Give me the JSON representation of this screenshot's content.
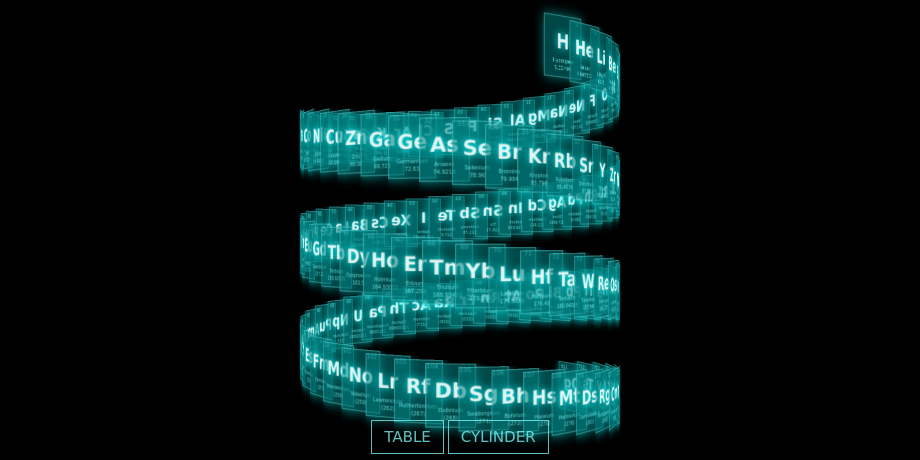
{
  "menu": {
    "table_label": "TABLE",
    "cylinder_label": "CYLINDER"
  },
  "view": {
    "layout": "cylinder"
  },
  "colors": {
    "tile_bg": "#007f7f",
    "glow": "#00ffff",
    "text": "#7fffff"
  },
  "elements": [
    {
      "n": 1,
      "s": "H",
      "name": "Hydrogen",
      "w": "1.00794"
    },
    {
      "n": 2,
      "s": "He",
      "name": "Helium",
      "w": "4.002602"
    },
    {
      "n": 3,
      "s": "Li",
      "name": "Lithium",
      "w": "6.941"
    },
    {
      "n": 4,
      "s": "Be",
      "name": "Beryllium",
      "w": "9.012182"
    },
    {
      "n": 5,
      "s": "B",
      "name": "Boron",
      "w": "10.811"
    },
    {
      "n": 6,
      "s": "C",
      "name": "Carbon",
      "w": "12.0107"
    },
    {
      "n": 7,
      "s": "N",
      "name": "Nitrogen",
      "w": "14.0067"
    },
    {
      "n": 8,
      "s": "O",
      "name": "Oxygen",
      "w": "15.9994"
    },
    {
      "n": 9,
      "s": "F",
      "name": "Fluorine",
      "w": "18.9984032"
    },
    {
      "n": 10,
      "s": "Ne",
      "name": "Neon",
      "w": "20.1797"
    },
    {
      "n": 11,
      "s": "Na",
      "name": "Sodium",
      "w": "22.98976..."
    },
    {
      "n": 12,
      "s": "Mg",
      "name": "Magnesium",
      "w": "24.305"
    },
    {
      "n": 13,
      "s": "Al",
      "name": "Aluminium",
      "w": "26.9815386"
    },
    {
      "n": 14,
      "s": "Si",
      "name": "Silicon",
      "w": "28.0855"
    },
    {
      "n": 15,
      "s": "P",
      "name": "Phosphorus",
      "w": "30.973762"
    },
    {
      "n": 16,
      "s": "S",
      "name": "Sulfur",
      "w": "32.065"
    },
    {
      "n": 17,
      "s": "Cl",
      "name": "Chlorine",
      "w": "35.453"
    },
    {
      "n": 18,
      "s": "Ar",
      "name": "Argon",
      "w": "39.948"
    },
    {
      "n": 19,
      "s": "K",
      "name": "Potassium",
      "w": "39.948"
    },
    {
      "n": 20,
      "s": "Ca",
      "name": "Calcium",
      "w": "40.078"
    },
    {
      "n": 21,
      "s": "Sc",
      "name": "Scandium",
      "w": "44.955912"
    },
    {
      "n": 22,
      "s": "Ti",
      "name": "Titanium",
      "w": "47.867"
    },
    {
      "n": 23,
      "s": "V",
      "name": "Vanadium",
      "w": "50.9415"
    },
    {
      "n": 24,
      "s": "Cr",
      "name": "Chromium",
      "w": "51.9961"
    },
    {
      "n": 25,
      "s": "Mn",
      "name": "Manganese",
      "w": "54.938045"
    },
    {
      "n": 26,
      "s": "Fe",
      "name": "Iron",
      "w": "55.845"
    },
    {
      "n": 27,
      "s": "Co",
      "name": "Cobalt",
      "w": "58.933195"
    },
    {
      "n": 28,
      "s": "Ni",
      "name": "Nickel",
      "w": "58.6934"
    },
    {
      "n": 29,
      "s": "Cu",
      "name": "Copper",
      "w": "63.546"
    },
    {
      "n": 30,
      "s": "Zn",
      "name": "Zinc",
      "w": "65.38"
    },
    {
      "n": 31,
      "s": "Ga",
      "name": "Gallium",
      "w": "69.723"
    },
    {
      "n": 32,
      "s": "Ge",
      "name": "Germanium",
      "w": "72.63"
    },
    {
      "n": 33,
      "s": "As",
      "name": "Arsenic",
      "w": "74.9216"
    },
    {
      "n": 34,
      "s": "Se",
      "name": "Selenium",
      "w": "78.96"
    },
    {
      "n": 35,
      "s": "Br",
      "name": "Bromine",
      "w": "79.904"
    },
    {
      "n": 36,
      "s": "Kr",
      "name": "Krypton",
      "w": "83.798"
    },
    {
      "n": 37,
      "s": "Rb",
      "name": "Rubidium",
      "w": "85.4678"
    },
    {
      "n": 38,
      "s": "Sr",
      "name": "Strontium",
      "w": "87.62"
    },
    {
      "n": 39,
      "s": "Y",
      "name": "Yttrium",
      "w": "88.90585"
    },
    {
      "n": 40,
      "s": "Zr",
      "name": "Zirconium",
      "w": "91.224"
    },
    {
      "n": 41,
      "s": "Nb",
      "name": "Niobium",
      "w": "92.90628"
    },
    {
      "n": 42,
      "s": "Mo",
      "name": "Molybdenum",
      "w": "95.96"
    },
    {
      "n": 43,
      "s": "Tc",
      "name": "Technetium",
      "w": "(98)"
    },
    {
      "n": 44,
      "s": "Ru",
      "name": "Ruthenium",
      "w": "101.07"
    },
    {
      "n": 45,
      "s": "Rh",
      "name": "Rhodium",
      "w": "102.9055"
    },
    {
      "n": 46,
      "s": "Pd",
      "name": "Palladium",
      "w": "106.42"
    },
    {
      "n": 47,
      "s": "Ag",
      "name": "Silver",
      "w": "107.8682"
    },
    {
      "n": 48,
      "s": "Cd",
      "name": "Cadmium",
      "w": "112.411"
    },
    {
      "n": 49,
      "s": "In",
      "name": "Indium",
      "w": "114.818"
    },
    {
      "n": 50,
      "s": "Sn",
      "name": "Tin",
      "w": "118.71"
    },
    {
      "n": 51,
      "s": "Sb",
      "name": "Antimony",
      "w": "121.76"
    },
    {
      "n": 52,
      "s": "Te",
      "name": "Tellurium",
      "w": "127.6"
    },
    {
      "n": 53,
      "s": "I",
      "name": "Iodine",
      "w": "126.90447"
    },
    {
      "n": 54,
      "s": "Xe",
      "name": "Xenon",
      "w": "131.293"
    },
    {
      "n": 55,
      "s": "Cs",
      "name": "Caesium",
      "w": "132.9054"
    },
    {
      "n": 56,
      "s": "Ba",
      "name": "Barium",
      "w": "132.9054519"
    },
    {
      "n": 57,
      "s": "La",
      "name": "Lanthanum",
      "w": "138.90547"
    },
    {
      "n": 58,
      "s": "Ce",
      "name": "Cerium",
      "w": "140.116"
    },
    {
      "n": 59,
      "s": "Pr",
      "name": "Praseodymium",
      "w": "140.90765"
    },
    {
      "n": 60,
      "s": "Nd",
      "name": "Neodymium",
      "w": "144.242"
    },
    {
      "n": 61,
      "s": "Pm",
      "name": "Promethium",
      "w": "(145)"
    },
    {
      "n": 62,
      "s": "Sm",
      "name": "Samarium",
      "w": "150.36"
    },
    {
      "n": 63,
      "s": "Eu",
      "name": "Europium",
      "w": "151.964"
    },
    {
      "n": 64,
      "s": "Gd",
      "name": "Gadolinium",
      "w": "157.25"
    },
    {
      "n": 65,
      "s": "Tb",
      "name": "Terbium",
      "w": "158.92535"
    },
    {
      "n": 66,
      "s": "Dy",
      "name": "Dysprosium",
      "w": "162.5"
    },
    {
      "n": 67,
      "s": "Ho",
      "name": "Holmium",
      "w": "164.93032"
    },
    {
      "n": 68,
      "s": "Er",
      "name": "Erbium",
      "w": "167.259"
    },
    {
      "n": 69,
      "s": "Tm",
      "name": "Thulium",
      "w": "168.93421"
    },
    {
      "n": 70,
      "s": "Yb",
      "name": "Ytterbium",
      "w": "173.054"
    },
    {
      "n": 71,
      "s": "Lu",
      "name": "Lutetium",
      "w": "174.9668"
    },
    {
      "n": 72,
      "s": "Hf",
      "name": "Hafnium",
      "w": "178.49"
    },
    {
      "n": 73,
      "s": "Ta",
      "name": "Tantalum",
      "w": "180.94788"
    },
    {
      "n": 74,
      "s": "W",
      "name": "Tungsten",
      "w": "183.84"
    },
    {
      "n": 75,
      "s": "Re",
      "name": "Rhenium",
      "w": "186.207"
    },
    {
      "n": 76,
      "s": "Os",
      "name": "Osmium",
      "w": "190.23"
    },
    {
      "n": 77,
      "s": "Ir",
      "name": "Iridium",
      "w": "192.217"
    },
    {
      "n": 78,
      "s": "Pt",
      "name": "Platinum",
      "w": "195.084"
    },
    {
      "n": 79,
      "s": "Au",
      "name": "Gold",
      "w": "196.966569"
    },
    {
      "n": 80,
      "s": "Hg",
      "name": "Mercury",
      "w": "200.59"
    },
    {
      "n": 81,
      "s": "Tl",
      "name": "Thallium",
      "w": "204.3833"
    },
    {
      "n": 82,
      "s": "Pb",
      "name": "Lead",
      "w": "207.2"
    },
    {
      "n": 83,
      "s": "Bi",
      "name": "Bismuth",
      "w": "208.9804"
    },
    {
      "n": 84,
      "s": "Po",
      "name": "Polonium",
      "w": "(209)"
    },
    {
      "n": 85,
      "s": "At",
      "name": "Astatine",
      "w": "(210)"
    },
    {
      "n": 86,
      "s": "Rn",
      "name": "Radon",
      "w": "(222)"
    },
    {
      "n": 87,
      "s": "Fr",
      "name": "Francium",
      "w": "(223)"
    },
    {
      "n": 88,
      "s": "Ra",
      "name": "Radium",
      "w": "(226)"
    },
    {
      "n": 89,
      "s": "Ac",
      "name": "Actinium",
      "w": "(227)"
    },
    {
      "n": 90,
      "s": "Th",
      "name": "Thorium",
      "w": "232.03806"
    },
    {
      "n": 91,
      "s": "Pa",
      "name": "Protactinium",
      "w": "231.0588"
    },
    {
      "n": 92,
      "s": "U",
      "name": "Uranium",
      "w": "238.02891"
    },
    {
      "n": 93,
      "s": "Np",
      "name": "Neptunium",
      "w": "(237)"
    },
    {
      "n": 94,
      "s": "Pu",
      "name": "Plutonium",
      "w": "(244)"
    },
    {
      "n": 95,
      "s": "Am",
      "name": "Americium",
      "w": "(243)"
    },
    {
      "n": 96,
      "s": "Cm",
      "name": "Curium",
      "w": "(247)"
    },
    {
      "n": 97,
      "s": "Bk",
      "name": "Berkelium",
      "w": "(247)"
    },
    {
      "n": 98,
      "s": "Cf",
      "name": "Californium",
      "w": "(251)"
    },
    {
      "n": 99,
      "s": "Es",
      "name": "Einstenium",
      "w": "(252)"
    },
    {
      "n": 100,
      "s": "Fm",
      "name": "Fermium",
      "w": "(257)"
    },
    {
      "n": 101,
      "s": "Md",
      "name": "Mendelevium",
      "w": "(258)"
    },
    {
      "n": 102,
      "s": "No",
      "name": "Nobelium",
      "w": "(259)"
    },
    {
      "n": 103,
      "s": "Lr",
      "name": "Lawrencium",
      "w": "(262)"
    },
    {
      "n": 104,
      "s": "Rf",
      "name": "Rutherfordium",
      "w": "(267)"
    },
    {
      "n": 105,
      "s": "Db",
      "name": "Dubnium",
      "w": "(268)"
    },
    {
      "n": 106,
      "s": "Sg",
      "name": "Seaborgium",
      "w": "(271)"
    },
    {
      "n": 107,
      "s": "Bh",
      "name": "Bohrium",
      "w": "(272)"
    },
    {
      "n": 108,
      "s": "Hs",
      "name": "Hassium",
      "w": "(270)"
    },
    {
      "n": 109,
      "s": "Mt",
      "name": "Meitnerium",
      "w": "(276)"
    },
    {
      "n": 110,
      "s": "Ds",
      "name": "Darmstadium",
      "w": "(281)"
    },
    {
      "n": 111,
      "s": "Rg",
      "name": "Roentgenium",
      "w": "(280)"
    },
    {
      "n": 112,
      "s": "Cn",
      "name": "Copernicium",
      "w": "(285)"
    },
    {
      "n": 113,
      "s": "Nh",
      "name": "Nihonium",
      "w": "(286)"
    },
    {
      "n": 114,
      "s": "Fl",
      "name": "Flerovium",
      "w": "(289)"
    },
    {
      "n": 115,
      "s": "Mc",
      "name": "Moscovium",
      "w": "(290)"
    },
    {
      "n": 116,
      "s": "Lv",
      "name": "Livermorium",
      "w": "(293)"
    },
    {
      "n": 117,
      "s": "Ts",
      "name": "Tennessine",
      "w": "(294)"
    },
    {
      "n": 118,
      "s": "Og",
      "name": "Oganesson",
      "w": "(294)"
    }
  ]
}
